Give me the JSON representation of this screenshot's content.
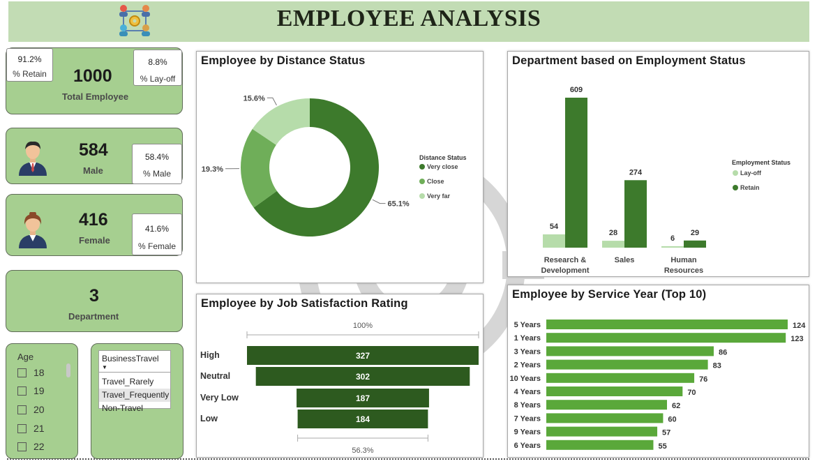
{
  "header": {
    "title": "EMPLOYEE ANALYSIS",
    "logo_icon": "team-network-icon"
  },
  "kpis": {
    "total": {
      "value": "1000",
      "label": "Total Employee",
      "retain_value": "91.2%",
      "retain_label": "% Retain",
      "layoff_value": "8.8%",
      "layoff_label": "% Lay-off"
    },
    "male": {
      "value": "584",
      "label": "Male",
      "pct_value": "58.4%",
      "pct_label": "% Male",
      "icon": "male-employee-icon"
    },
    "female": {
      "value": "416",
      "label": "Female",
      "pct_value": "41.6%",
      "pct_label": "% Female",
      "icon": "female-employee-icon"
    },
    "department": {
      "value": "3",
      "label": "Department"
    }
  },
  "age_slicer": {
    "title": "Age",
    "options": [
      "18",
      "19",
      "20",
      "21",
      "22"
    ]
  },
  "travel_slicer": {
    "title": "BusinessTravel",
    "options": [
      "Travel_Rarely",
      "Travel_Frequently",
      "Non-Travel"
    ],
    "highlighted": "Travel_Frequently"
  },
  "colors": {
    "dark_green": "#3d7a2c",
    "mid_green": "#6fae59",
    "light_green": "#b6dcaa",
    "funnel_green": "#2d5a1f",
    "bar_green": "#5aa83a",
    "card_green": "#a6cf90"
  },
  "chart_data": [
    {
      "type": "pie",
      "title": "Employee by Distance Status",
      "legend_title": "Distance Status",
      "legend_position": "right",
      "labels": [
        "Very close",
        "Close",
        "Very far"
      ],
      "values": [
        65.1,
        19.3,
        15.6
      ],
      "value_labels": [
        "65.1%",
        "19.3%",
        "15.6%"
      ],
      "donut": true
    },
    {
      "type": "bar",
      "title": "Department based on Employment Status",
      "categories": [
        "Research & Development",
        "Sales",
        "Human Resources"
      ],
      "category_lines": [
        [
          "Research &",
          "Development"
        ],
        [
          "Sales"
        ],
        [
          "Human",
          "Resources"
        ]
      ],
      "legend_title": "Employment Status",
      "legend_position": "right",
      "series": [
        {
          "name": "Lay-off",
          "values": [
            54,
            28,
            6
          ]
        },
        {
          "name": "Retain",
          "values": [
            609,
            274,
            29
          ]
        }
      ]
    },
    {
      "type": "bar",
      "subtype": "funnel",
      "title": "Employee by Job Satisfaction Rating",
      "categories": [
        "High",
        "Neutral",
        "Very Low",
        "Low"
      ],
      "values": [
        327,
        302,
        187,
        184
      ],
      "top_percent": "100%",
      "bottom_percent": "56.3%"
    },
    {
      "type": "bar",
      "orientation": "horizontal",
      "title": "Employee by Service Year (Top 10)",
      "categories": [
        "5 Years",
        "1 Years",
        "3 Years",
        "2 Years",
        "10 Years",
        "4 Years",
        "8 Years",
        "7 Years",
        "9 Years",
        "6 Years"
      ],
      "values": [
        124,
        123,
        86,
        83,
        76,
        70,
        62,
        60,
        57,
        55
      ]
    }
  ]
}
